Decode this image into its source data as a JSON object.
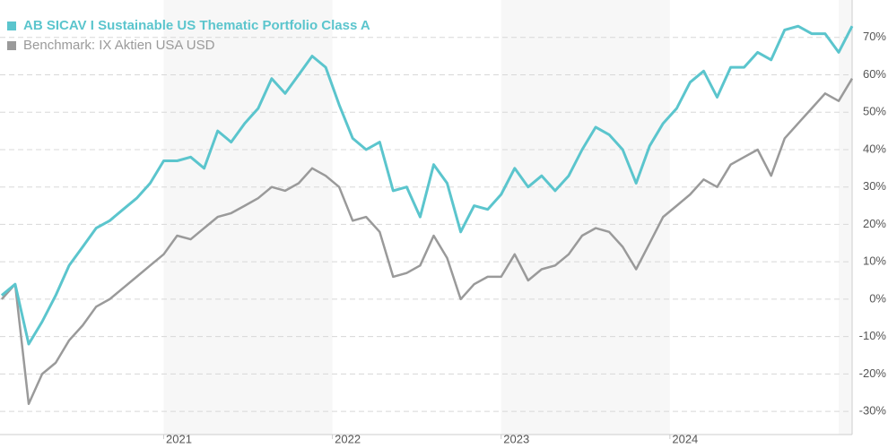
{
  "chart_data": {
    "type": "line",
    "x": [
      2020.04,
      2020.12,
      2020.2,
      2020.28,
      2020.36,
      2020.44,
      2020.52,
      2020.6,
      2020.68,
      2020.76,
      2020.84,
      2020.92,
      2021.0,
      2021.08,
      2021.16,
      2021.24,
      2021.32,
      2021.4,
      2021.48,
      2021.56,
      2021.64,
      2021.72,
      2021.8,
      2021.88,
      2021.96,
      2022.04,
      2022.12,
      2022.2,
      2022.28,
      2022.36,
      2022.44,
      2022.52,
      2022.6,
      2022.68,
      2022.76,
      2022.84,
      2022.92,
      2023.0,
      2023.08,
      2023.16,
      2023.24,
      2023.32,
      2023.4,
      2023.48,
      2023.56,
      2023.64,
      2023.72,
      2023.8,
      2023.88,
      2023.96,
      2024.04,
      2024.12,
      2024.2,
      2024.28,
      2024.36,
      2024.44,
      2024.52,
      2024.6,
      2024.68,
      2024.76,
      2024.84,
      2024.92,
      2025.0,
      2025.08
    ],
    "series": [
      {
        "name": "AB SICAV I Sustainable US Thematic Portfolio Class A",
        "color": "#5bc5cd",
        "values": [
          1,
          4,
          -12,
          -6,
          1,
          9,
          14,
          19,
          21,
          24,
          27,
          31,
          37,
          37,
          38,
          35,
          45,
          42,
          47,
          51,
          59,
          55,
          60,
          65,
          62,
          52,
          43,
          40,
          42,
          29,
          30,
          22,
          36,
          31,
          18,
          25,
          24,
          28,
          35,
          30,
          33,
          29,
          33,
          40,
          46,
          44,
          40,
          31,
          41,
          47,
          51,
          58,
          61,
          54,
          62,
          62,
          66,
          64,
          72,
          73,
          71,
          71,
          66,
          73
        ]
      },
      {
        "name": "Benchmark: IX Aktien USA USD",
        "color": "#9a9a9a",
        "values": [
          0,
          4,
          -28,
          -20,
          -17,
          -11,
          -7,
          -2,
          0,
          3,
          6,
          9,
          12,
          17,
          16,
          19,
          22,
          23,
          25,
          27,
          30,
          29,
          31,
          35,
          33,
          30,
          21,
          22,
          18,
          6,
          7,
          9,
          17,
          11,
          0,
          4,
          6,
          6,
          12,
          5,
          8,
          9,
          12,
          17,
          19,
          18,
          14,
          8,
          15,
          22,
          25,
          28,
          32,
          30,
          36,
          38,
          40,
          33,
          43,
          47,
          51,
          55,
          53,
          59
        ]
      }
    ],
    "xlim": [
      2020.03,
      2025.08
    ],
    "xticks": [
      2021,
      2022,
      2023,
      2024
    ],
    "ylim": [
      -35,
      80
    ],
    "yticks": [
      {
        "value": -30,
        "label": "-30%"
      },
      {
        "value": -20,
        "label": "-20%"
      },
      {
        "value": -10,
        "label": "-10%"
      },
      {
        "value": 0,
        "label": "0%"
      },
      {
        "value": 10,
        "label": "10%"
      },
      {
        "value": 20,
        "label": "20%"
      },
      {
        "value": 30,
        "label": "30%"
      },
      {
        "value": 40,
        "label": "40%"
      },
      {
        "value": 50,
        "label": "50%"
      },
      {
        "value": 60,
        "label": "60%"
      },
      {
        "value": 70,
        "label": "70%"
      }
    ],
    "grid": true,
    "legend": "top-left"
  }
}
